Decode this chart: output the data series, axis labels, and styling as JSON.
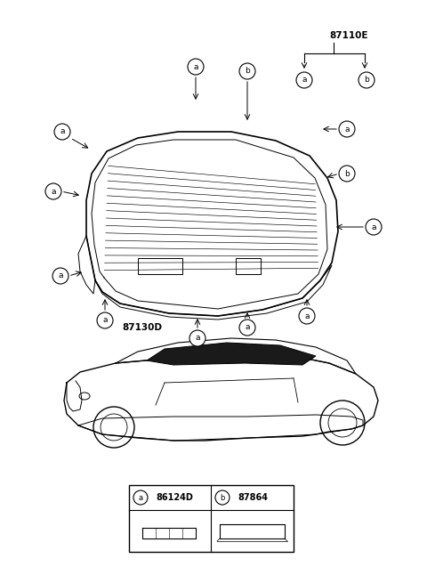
{
  "title": "",
  "bg_color": "#ffffff",
  "line_color": "#000000",
  "label_87110E": "87110E",
  "label_87130D": "87130D",
  "label_a": "a",
  "label_b": "b",
  "label_86124D": "86124D",
  "label_87864": "87864"
}
